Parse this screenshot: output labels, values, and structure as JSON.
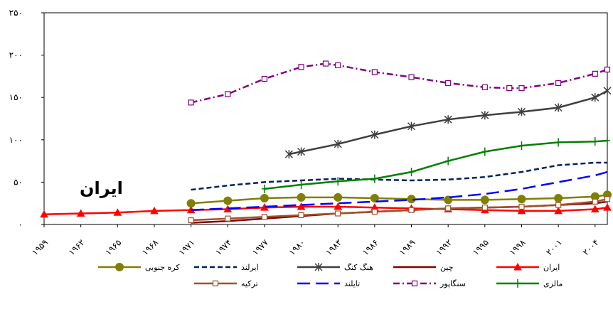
{
  "chart_data": {
    "type": "line",
    "title": "",
    "xlabel": "",
    "ylabel": "",
    "annotation": "ایران",
    "ylim": [
      0,
      250
    ],
    "yticks": [
      0,
      50,
      100,
      150,
      200,
      250
    ],
    "ytick_labels": [
      "۰",
      "۵۰",
      "۱۰۰",
      "۱۵۰",
      "۲۰۰",
      "۲۵۰"
    ],
    "xlim": [
      1959,
      2005
    ],
    "xticks": [
      1959,
      1962,
      1965,
      1968,
      1971,
      1974,
      1977,
      1980,
      1983,
      1986,
      1989,
      1992,
      1995,
      1998,
      2001,
      2004
    ],
    "xtick_labels": [
      "۱۹۵۹",
      "۱۹۶۲",
      "۱۹۶۵",
      "۱۹۶۸",
      "۱۹۷۱",
      "۱۹۷۴",
      "۱۹۷۷",
      "۱۹۸۰",
      "۱۹۸۳",
      "۱۹۸۶",
      "۱۹۸۹",
      "۱۹۹۲",
      "۱۹۹۵",
      "۱۹۹۸",
      "۲۰۰۱",
      "۲۰۰۴"
    ],
    "grid": false,
    "legend_position": "bottom",
    "series": [
      {
        "name": "ایران",
        "color": "#ff0000",
        "dash": "solid",
        "marker": "triangle",
        "x": [
          1959,
          1962,
          1965,
          1968,
          1971,
          1974,
          1977,
          1980,
          1983,
          1986,
          1989,
          1992,
          1995,
          1998,
          2001,
          2004,
          2005
        ],
        "y": [
          12,
          13,
          14,
          16,
          17,
          18,
          20,
          21,
          21,
          20,
          19,
          18,
          17,
          16,
          16,
          18,
          20
        ]
      },
      {
        "name": "چین",
        "color": "#800000",
        "dash": "solid",
        "marker": "none",
        "x": [
          1971,
          1974,
          1977,
          1980,
          1983,
          1986,
          1989,
          1992,
          1995,
          1998,
          2001,
          2004,
          2005
        ],
        "y": [
          2,
          4,
          7,
          10,
          13,
          15,
          17,
          19,
          20,
          21,
          23,
          25,
          27
        ]
      },
      {
        "name": "هنگ کنگ",
        "color": "#404040",
        "dash": "solid",
        "marker": "star",
        "x": [
          1979,
          1980,
          1983,
          1986,
          1989,
          1992,
          1995,
          1998,
          2001,
          2004,
          2005
        ],
        "y": [
          83,
          86,
          95,
          106,
          116,
          124,
          129,
          133,
          138,
          150,
          158
        ]
      },
      {
        "name": "ایرلند",
        "color": "#002060",
        "dash": "dash",
        "marker": "none",
        "x": [
          1971,
          1974,
          1977,
          1980,
          1983,
          1986,
          1989,
          1992,
          1995,
          1998,
          2001,
          2004,
          2005
        ],
        "y": [
          41,
          46,
          50,
          52,
          54,
          53,
          52,
          53,
          56,
          62,
          70,
          73,
          73
        ]
      },
      {
        "name": "کره جنوبی",
        "color": "#808000",
        "dash": "solid",
        "marker": "circle",
        "x": [
          1971,
          1974,
          1977,
          1980,
          1983,
          1986,
          1989,
          1992,
          1995,
          1998,
          2001,
          2004,
          2005
        ],
        "y": [
          25,
          28,
          31,
          32,
          32,
          31,
          30,
          29,
          29,
          30,
          31,
          33,
          35
        ]
      },
      {
        "name": "مالزی",
        "color": "#008000",
        "dash": "solid",
        "marker": "plus",
        "x": [
          1977,
          1980,
          1983,
          1986,
          1989,
          1992,
          1995,
          1998,
          2001,
          2004,
          2005
        ],
        "y": [
          42,
          47,
          51,
          54,
          62,
          75,
          86,
          93,
          97,
          98,
          99
        ]
      },
      {
        "name": "سنگاپور",
        "color": "#800080",
        "dash": "dashdot",
        "marker": "square",
        "x": [
          1971,
          1974,
          1977,
          1980,
          1982,
          1983,
          1986,
          1989,
          1992,
          1995,
          1997,
          1998,
          2001,
          2004,
          2005
        ],
        "y": [
          144,
          154,
          172,
          186,
          190,
          188,
          180,
          174,
          167,
          162,
          161,
          161,
          167,
          178,
          183
        ]
      },
      {
        "name": "تایلند",
        "color": "#0000ff",
        "dash": "longdash",
        "marker": "none",
        "x": [
          1971,
          1974,
          1977,
          1980,
          1983,
          1986,
          1989,
          1992,
          1995,
          1998,
          2001,
          2004,
          2005
        ],
        "y": [
          17,
          19,
          21,
          23,
          25,
          27,
          29,
          32,
          36,
          42,
          50,
          58,
          62
        ]
      },
      {
        "name": "ترکیه",
        "color": "#a0522d",
        "dash": "solid",
        "marker": "square",
        "x": [
          1971,
          1974,
          1977,
          1980,
          1983,
          1986,
          1989,
          1992,
          1995,
          1998,
          2001,
          2004,
          2005
        ],
        "y": [
          5,
          7,
          9,
          11,
          13,
          15,
          17,
          19,
          20,
          21,
          23,
          27,
          30
        ]
      }
    ]
  }
}
